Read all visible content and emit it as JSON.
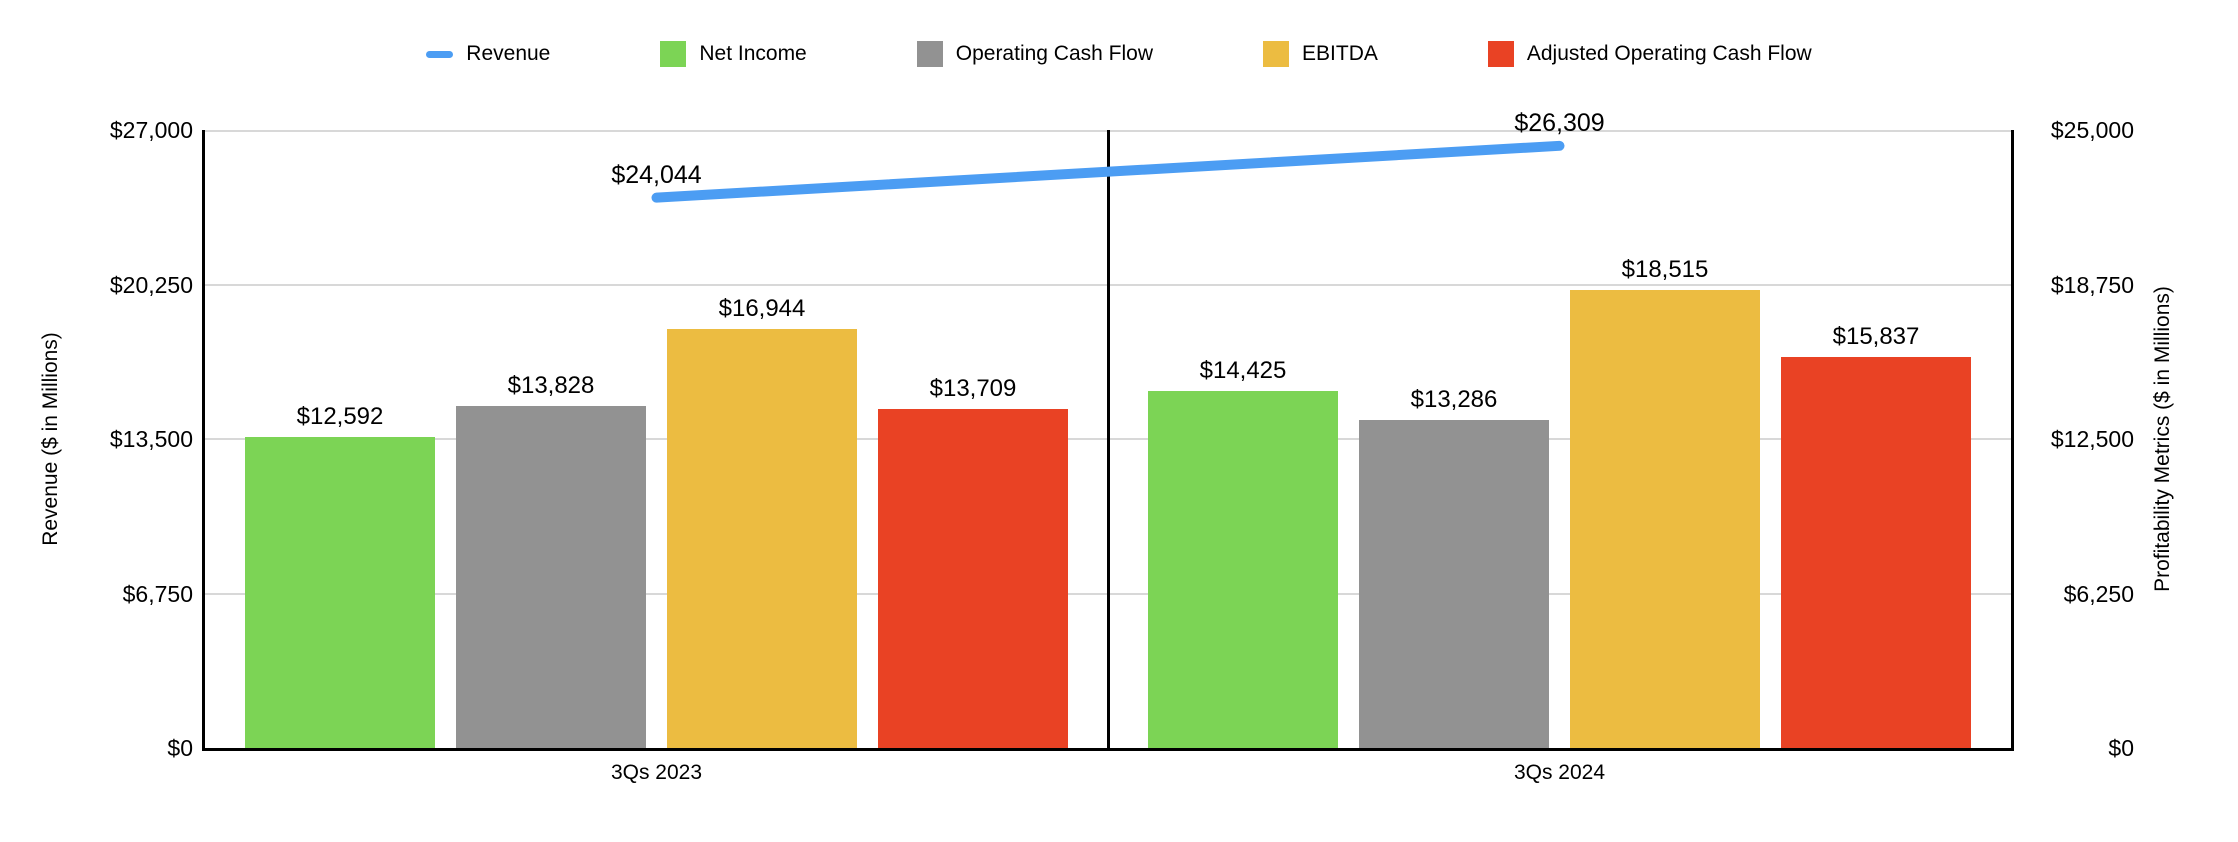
{
  "chart_data": {
    "type": "combo",
    "categories": [
      "3Qs 2023",
      "3Qs 2024"
    ],
    "series": [
      {
        "name": "Revenue",
        "type": "line",
        "axis": "left",
        "color": "#4C9DF3",
        "values": [
          24044,
          26309
        ],
        "data_labels": [
          "$24,044",
          "$26,309"
        ]
      },
      {
        "name": "Net Income",
        "type": "bar",
        "axis": "right",
        "color": "#7CD455",
        "values": [
          12592,
          14425
        ],
        "data_labels": [
          "$12,592",
          "$14,425"
        ]
      },
      {
        "name": "Operating Cash Flow",
        "type": "bar",
        "axis": "right",
        "color": "#929292",
        "values": [
          13828,
          13286
        ],
        "data_labels": [
          "$13,828",
          "$13,286"
        ]
      },
      {
        "name": "EBITDA",
        "type": "bar",
        "axis": "right",
        "color": "#ECBC41",
        "values": [
          16944,
          18515
        ],
        "data_labels": [
          "$16,944",
          "$18,515"
        ]
      },
      {
        "name": "Adjusted Operating Cash Flow",
        "type": "bar",
        "axis": "right",
        "color": "#E94224",
        "values": [
          13709,
          15837
        ],
        "data_labels": [
          "$13,709",
          "$15,837"
        ]
      }
    ],
    "left_axis": {
      "title": "Revenue ($ in Millions)",
      "min": 0,
      "max": 27000,
      "tick_values": [
        0,
        6750,
        13500,
        20250,
        27000
      ],
      "tick_labels": [
        "$0",
        "$6,750",
        "$13,500",
        "$20,250",
        "$27,000"
      ]
    },
    "right_axis": {
      "title": "Profitability Metrics ($ in Millions)",
      "min": 0,
      "max": 25000,
      "tick_values": [
        0,
        6250,
        12500,
        18750,
        25000
      ],
      "tick_labels": [
        "$0",
        "$6,250",
        "$12,500",
        "$18,750",
        "$25,000"
      ]
    },
    "grid": true,
    "legend_position": "top",
    "colors": {
      "grid": "#D8D8D8",
      "axis": "#000000",
      "background": "#FFFFFF"
    }
  }
}
